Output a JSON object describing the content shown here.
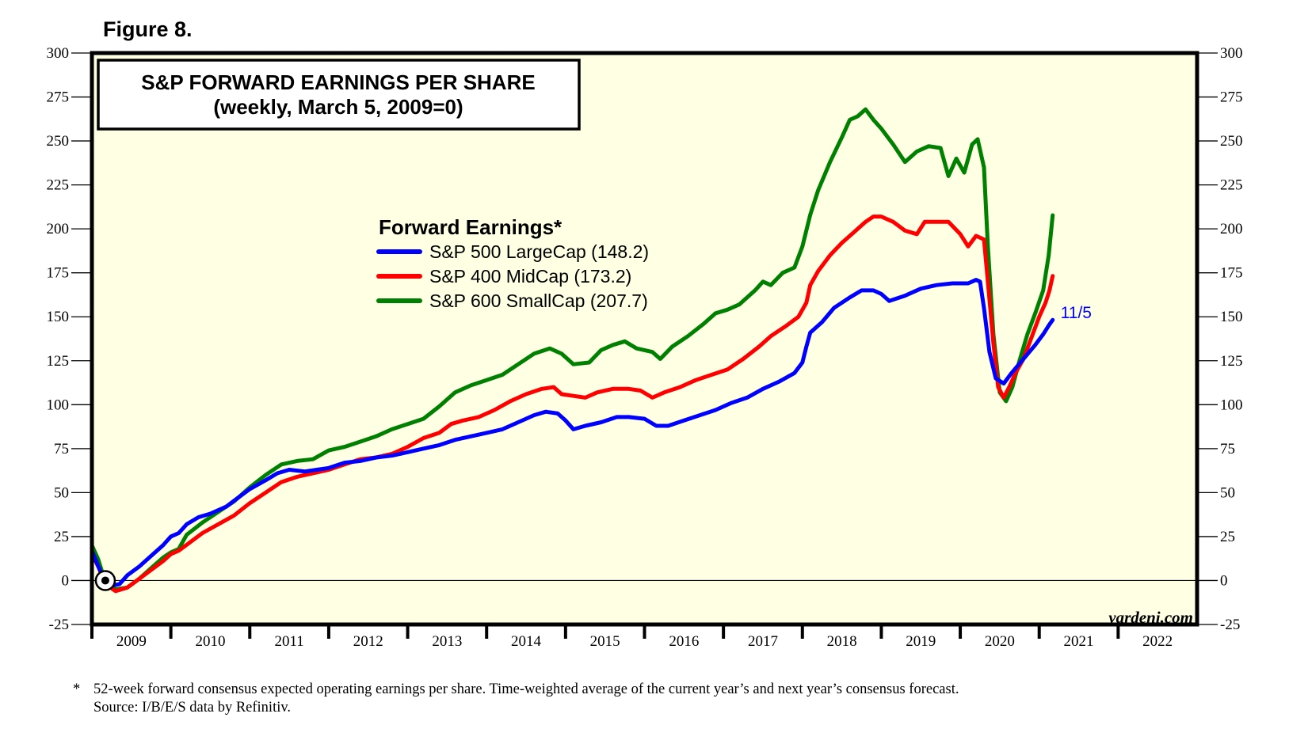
{
  "figure_label": "Figure 8.",
  "footnote": {
    "marker": "*",
    "text": "52-week forward consensus expected operating earnings per share. Time-weighted average of the current year’s and next year’s consensus forecast.",
    "source": "Source: I/B/E/S data by Refinitiv."
  },
  "chart_data": {
    "type": "line",
    "title": "S&P FORWARD EARNINGS PER SHARE",
    "subtitle": "(weekly, March 5, 2009=0)",
    "xlabel": "",
    "ylabel": "",
    "ylim": [
      -25,
      300
    ],
    "xlim": [
      2009,
      2023
    ],
    "yticks": [
      -25,
      0,
      25,
      50,
      75,
      100,
      125,
      150,
      175,
      200,
      225,
      250,
      275,
      300
    ],
    "ytick_labels": [
      "-25",
      "0",
      "25",
      "50",
      "75",
      "100",
      "125",
      "150",
      "175",
      "200",
      "225",
      "250",
      "275",
      "300"
    ],
    "xtick_labels": [
      "2009",
      "2010",
      "2011",
      "2012",
      "2013",
      "2014",
      "2015",
      "2016",
      "2017",
      "2018",
      "2019",
      "2020",
      "2021",
      "2022"
    ],
    "grid": false,
    "zero_line": true,
    "legend": {
      "title": "Forward Earnings*",
      "placement": "center-left",
      "entries": [
        "S&P 500 LargeCap (148.2)",
        "S&P 400 MidCap (173.2)",
        "S&P 600 SmallCap (207.7)"
      ]
    },
    "annotations": {
      "end_label": "11/5",
      "watermark": "yardeni.com",
      "origin_marker": {
        "x": 2009.17,
        "y": 0
      }
    },
    "background_color": "#ffffe4",
    "series": [
      {
        "name": "S&P 500 LargeCap",
        "color": "#0000ff",
        "last_value": 148.2,
        "points": [
          [
            2009.0,
            17
          ],
          [
            2009.08,
            8
          ],
          [
            2009.17,
            0
          ],
          [
            2009.25,
            -3
          ],
          [
            2009.35,
            -2
          ],
          [
            2009.45,
            3
          ],
          [
            2009.6,
            8
          ],
          [
            2009.75,
            14
          ],
          [
            2009.9,
            20
          ],
          [
            2010.0,
            25
          ],
          [
            2010.1,
            27
          ],
          [
            2010.2,
            32
          ],
          [
            2010.35,
            36
          ],
          [
            2010.5,
            38
          ],
          [
            2010.7,
            42
          ],
          [
            2010.85,
            47
          ],
          [
            2011.0,
            52
          ],
          [
            2011.2,
            57
          ],
          [
            2011.35,
            61
          ],
          [
            2011.5,
            63
          ],
          [
            2011.7,
            62
          ],
          [
            2011.85,
            63
          ],
          [
            2012.0,
            64
          ],
          [
            2012.2,
            67
          ],
          [
            2012.4,
            68
          ],
          [
            2012.6,
            70
          ],
          [
            2012.8,
            71
          ],
          [
            2013.0,
            73
          ],
          [
            2013.2,
            75
          ],
          [
            2013.4,
            77
          ],
          [
            2013.6,
            80
          ],
          [
            2013.8,
            82
          ],
          [
            2014.0,
            84
          ],
          [
            2014.2,
            86
          ],
          [
            2014.4,
            90
          ],
          [
            2014.6,
            94
          ],
          [
            2014.75,
            96
          ],
          [
            2014.9,
            95
          ],
          [
            2015.0,
            91
          ],
          [
            2015.1,
            86
          ],
          [
            2015.25,
            88
          ],
          [
            2015.45,
            90
          ],
          [
            2015.65,
            93
          ],
          [
            2015.8,
            93
          ],
          [
            2016.0,
            92
          ],
          [
            2016.15,
            88
          ],
          [
            2016.3,
            88
          ],
          [
            2016.5,
            91
          ],
          [
            2016.7,
            94
          ],
          [
            2016.9,
            97
          ],
          [
            2017.1,
            101
          ],
          [
            2017.3,
            104
          ],
          [
            2017.5,
            109
          ],
          [
            2017.7,
            113
          ],
          [
            2017.9,
            118
          ],
          [
            2018.0,
            124
          ],
          [
            2018.05,
            133
          ],
          [
            2018.1,
            141
          ],
          [
            2018.25,
            147
          ],
          [
            2018.4,
            155
          ],
          [
            2018.6,
            161
          ],
          [
            2018.75,
            165
          ],
          [
            2018.9,
            165
          ],
          [
            2019.0,
            163
          ],
          [
            2019.1,
            159
          ],
          [
            2019.3,
            162
          ],
          [
            2019.5,
            166
          ],
          [
            2019.7,
            168
          ],
          [
            2019.9,
            169
          ],
          [
            2020.1,
            169
          ],
          [
            2020.2,
            171
          ],
          [
            2020.25,
            170
          ],
          [
            2020.3,
            155
          ],
          [
            2020.37,
            130
          ],
          [
            2020.45,
            115
          ],
          [
            2020.55,
            112
          ],
          [
            2020.65,
            118
          ],
          [
            2020.8,
            126
          ],
          [
            2020.95,
            134
          ],
          [
            2021.05,
            140
          ],
          [
            2021.12,
            145
          ],
          [
            2021.17,
            148.2
          ]
        ]
      },
      {
        "name": "S&P 400 MidCap",
        "color": "#ff0000",
        "last_value": 173.2,
        "points": [
          [
            2009.0,
            15
          ],
          [
            2009.08,
            8
          ],
          [
            2009.17,
            -2
          ],
          [
            2009.3,
            -6
          ],
          [
            2009.45,
            -4
          ],
          [
            2009.6,
            1
          ],
          [
            2009.75,
            6
          ],
          [
            2009.9,
            11
          ],
          [
            2010.0,
            15
          ],
          [
            2010.1,
            17
          ],
          [
            2010.25,
            22
          ],
          [
            2010.4,
            27
          ],
          [
            2010.6,
            32
          ],
          [
            2010.8,
            37
          ],
          [
            2011.0,
            44
          ],
          [
            2011.2,
            50
          ],
          [
            2011.4,
            56
          ],
          [
            2011.6,
            59
          ],
          [
            2011.8,
            61
          ],
          [
            2012.0,
            63
          ],
          [
            2012.2,
            66
          ],
          [
            2012.4,
            69
          ],
          [
            2012.6,
            70
          ],
          [
            2012.8,
            72
          ],
          [
            2013.0,
            76
          ],
          [
            2013.2,
            81
          ],
          [
            2013.4,
            84
          ],
          [
            2013.55,
            89
          ],
          [
            2013.7,
            91
          ],
          [
            2013.9,
            93
          ],
          [
            2014.1,
            97
          ],
          [
            2014.3,
            102
          ],
          [
            2014.5,
            106
          ],
          [
            2014.7,
            109
          ],
          [
            2014.85,
            110
          ],
          [
            2014.95,
            106
          ],
          [
            2015.1,
            105
          ],
          [
            2015.25,
            104
          ],
          [
            2015.4,
            107
          ],
          [
            2015.6,
            109
          ],
          [
            2015.8,
            109
          ],
          [
            2015.95,
            108
          ],
          [
            2016.1,
            104
          ],
          [
            2016.25,
            107
          ],
          [
            2016.45,
            110
          ],
          [
            2016.65,
            114
          ],
          [
            2016.85,
            117
          ],
          [
            2017.05,
            120
          ],
          [
            2017.25,
            126
          ],
          [
            2017.45,
            133
          ],
          [
            2017.6,
            139
          ],
          [
            2017.8,
            145
          ],
          [
            2017.95,
            150
          ],
          [
            2018.05,
            158
          ],
          [
            2018.1,
            168
          ],
          [
            2018.2,
            176
          ],
          [
            2018.35,
            185
          ],
          [
            2018.5,
            192
          ],
          [
            2018.65,
            198
          ],
          [
            2018.8,
            204
          ],
          [
            2018.9,
            207
          ],
          [
            2019.0,
            207
          ],
          [
            2019.15,
            204
          ],
          [
            2019.3,
            199
          ],
          [
            2019.45,
            197
          ],
          [
            2019.55,
            204
          ],
          [
            2019.7,
            204
          ],
          [
            2019.85,
            204
          ],
          [
            2020.0,
            197
          ],
          [
            2020.1,
            190
          ],
          [
            2020.2,
            196
          ],
          [
            2020.3,
            194
          ],
          [
            2020.35,
            170
          ],
          [
            2020.42,
            135
          ],
          [
            2020.48,
            110
          ],
          [
            2020.55,
            104
          ],
          [
            2020.62,
            110
          ],
          [
            2020.7,
            118
          ],
          [
            2020.8,
            126
          ],
          [
            2020.9,
            138
          ],
          [
            2021.0,
            150
          ],
          [
            2021.08,
            158
          ],
          [
            2021.13,
            165
          ],
          [
            2021.17,
            173.2
          ]
        ]
      },
      {
        "name": "S&P 600 SmallCap",
        "color": "#008000",
        "last_value": 207.7,
        "points": [
          [
            2009.0,
            20
          ],
          [
            2009.08,
            12
          ],
          [
            2009.17,
            -1
          ],
          [
            2009.3,
            -5
          ],
          [
            2009.45,
            -4
          ],
          [
            2009.6,
            1
          ],
          [
            2009.75,
            7
          ],
          [
            2009.9,
            13
          ],
          [
            2010.0,
            16
          ],
          [
            2010.1,
            18
          ],
          [
            2010.2,
            26
          ],
          [
            2010.4,
            33
          ],
          [
            2010.6,
            39
          ],
          [
            2010.8,
            45
          ],
          [
            2011.0,
            53
          ],
          [
            2011.2,
            60
          ],
          [
            2011.4,
            66
          ],
          [
            2011.6,
            68
          ],
          [
            2011.8,
            69
          ],
          [
            2012.0,
            74
          ],
          [
            2012.2,
            76
          ],
          [
            2012.4,
            79
          ],
          [
            2012.6,
            82
          ],
          [
            2012.8,
            86
          ],
          [
            2013.0,
            89
          ],
          [
            2013.2,
            92
          ],
          [
            2013.4,
            99
          ],
          [
            2013.6,
            107
          ],
          [
            2013.8,
            111
          ],
          [
            2014.0,
            114
          ],
          [
            2014.2,
            117
          ],
          [
            2014.4,
            123
          ],
          [
            2014.6,
            129
          ],
          [
            2014.8,
            132
          ],
          [
            2014.95,
            129
          ],
          [
            2015.1,
            123
          ],
          [
            2015.3,
            124
          ],
          [
            2015.45,
            131
          ],
          [
            2015.6,
            134
          ],
          [
            2015.75,
            136
          ],
          [
            2015.9,
            132
          ],
          [
            2016.1,
            130
          ],
          [
            2016.2,
            126
          ],
          [
            2016.35,
            133
          ],
          [
            2016.55,
            139
          ],
          [
            2016.75,
            146
          ],
          [
            2016.9,
            152
          ],
          [
            2017.05,
            154
          ],
          [
            2017.2,
            157
          ],
          [
            2017.4,
            165
          ],
          [
            2017.5,
            170
          ],
          [
            2017.6,
            168
          ],
          [
            2017.75,
            175
          ],
          [
            2017.9,
            178
          ],
          [
            2018.0,
            190
          ],
          [
            2018.1,
            208
          ],
          [
            2018.2,
            222
          ],
          [
            2018.35,
            238
          ],
          [
            2018.5,
            252
          ],
          [
            2018.6,
            262
          ],
          [
            2018.7,
            264
          ],
          [
            2018.8,
            268
          ],
          [
            2018.9,
            262
          ],
          [
            2019.0,
            257
          ],
          [
            2019.15,
            248
          ],
          [
            2019.3,
            238
          ],
          [
            2019.45,
            244
          ],
          [
            2019.6,
            247
          ],
          [
            2019.75,
            246
          ],
          [
            2019.85,
            230
          ],
          [
            2019.95,
            240
          ],
          [
            2020.05,
            232
          ],
          [
            2020.15,
            248
          ],
          [
            2020.22,
            251
          ],
          [
            2020.3,
            235
          ],
          [
            2020.35,
            190
          ],
          [
            2020.42,
            140
          ],
          [
            2020.5,
            107
          ],
          [
            2020.58,
            102
          ],
          [
            2020.66,
            110
          ],
          [
            2020.75,
            125
          ],
          [
            2020.85,
            140
          ],
          [
            2020.95,
            152
          ],
          [
            2021.05,
            165
          ],
          [
            2021.12,
            185
          ],
          [
            2021.17,
            207.7
          ]
        ]
      }
    ]
  }
}
